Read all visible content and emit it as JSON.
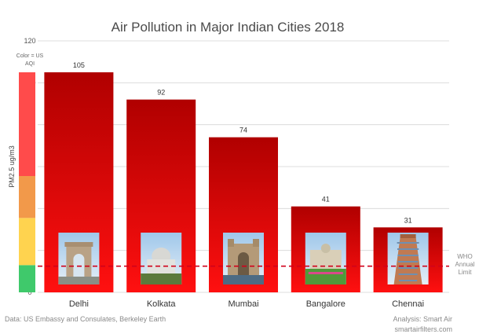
{
  "chart_data": {
    "type": "bar",
    "title": "Air Pollution in Major Indian Cities 2018",
    "ylabel": "PM2.5 ug/m3",
    "ylim": [
      0,
      120
    ],
    "yticks": [
      0,
      20,
      40,
      60,
      80,
      100,
      120
    ],
    "categories": [
      "Delhi",
      "Kolkata",
      "Mumbai",
      "Bangalore",
      "Chennai"
    ],
    "values": [
      105,
      92,
      74,
      41,
      31
    ],
    "value_labels": [
      "105",
      "92",
      "74",
      "41",
      "31"
    ],
    "grid": true,
    "reference_line": {
      "value": 12.5,
      "label_lines": [
        "WHO",
        "Annual",
        "Limit"
      ],
      "color": "#d0021b"
    },
    "aqi_legend": {
      "label_lines": [
        "Color = US",
        "AQI"
      ],
      "bands": [
        {
          "from": 0,
          "to": 13,
          "color": "#3fc96b"
        },
        {
          "from": 13,
          "to": 35.5,
          "color": "#ffd34f"
        },
        {
          "from": 35.5,
          "to": 55.5,
          "color": "#f2994a"
        },
        {
          "from": 55.5,
          "to": 105,
          "color": "#ff4b4b"
        }
      ]
    },
    "bar_color_top": "#b00000",
    "bar_color_bottom": "#ff1010",
    "footer_left": "Data: US Embassy and Consulates, Berkeley Earth",
    "footer_right_lines": [
      "Analysis: Smart Air",
      "smartairfilters.com"
    ]
  }
}
